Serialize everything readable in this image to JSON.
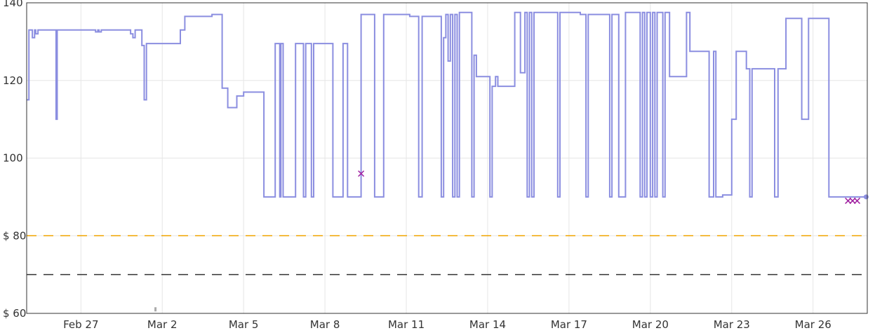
{
  "chart_data": {
    "type": "line",
    "title": "",
    "xlabel": "",
    "ylabel": "",
    "ylim": [
      60,
      140
    ],
    "xlim": [
      "2025-02-25",
      "2025-03-28"
    ],
    "grid": true,
    "y_ticks": [
      60,
      80,
      100,
      120,
      140
    ],
    "y_tick_labels": [
      "$ 60",
      "$ 80",
      "100",
      "120",
      "140"
    ],
    "x_ticks": [
      "2025-02-27",
      "2025-03-02",
      "2025-03-05",
      "2025-03-08",
      "2025-03-11",
      "2025-03-14",
      "2025-03-17",
      "2025-03-20",
      "2025-03-23",
      "2025-03-26"
    ],
    "x_tick_labels": [
      "Feb 27",
      "Mar 2",
      "Mar 5",
      "Mar 8",
      "Mar 11",
      "Mar 14",
      "Mar 17",
      "Mar 20",
      "Mar 23",
      "Mar 26"
    ],
    "reference_lines": [
      {
        "value": 80,
        "color": "#f0a500",
        "style": "dashed"
      },
      {
        "value": 70,
        "color": "#333333",
        "style": "dashed"
      }
    ],
    "series": [
      {
        "color": "#8b8ee0",
        "step": true,
        "points": [
          [
            "2025-02-25 00:00",
            115
          ],
          [
            "2025-02-25 02:00",
            133
          ],
          [
            "2025-02-25 05:00",
            131
          ],
          [
            "2025-02-25 07:00",
            133
          ],
          [
            "2025-02-25 08:00",
            132
          ],
          [
            "2025-02-25 10:00",
            133
          ],
          [
            "2025-02-26 02:00",
            110
          ],
          [
            "2025-02-26 03:00",
            133
          ],
          [
            "2025-02-27 13:00",
            132.5
          ],
          [
            "2025-02-27 15:00",
            133
          ],
          [
            "2025-02-27 16:00",
            132.5
          ],
          [
            "2025-02-27 18:00",
            133
          ],
          [
            "2025-02-28 20:00",
            132
          ],
          [
            "2025-02-28 22:00",
            131
          ],
          [
            "2025-03-01 00:00",
            133
          ],
          [
            "2025-03-01 06:00",
            129
          ],
          [
            "2025-03-01 08:00",
            115
          ],
          [
            "2025-03-01 10:00",
            129.5
          ],
          [
            "2025-03-02 16:00",
            133
          ],
          [
            "2025-03-02 20:00",
            136.5
          ],
          [
            "2025-03-03 20:00",
            137
          ],
          [
            "2025-03-04 05:00",
            118
          ],
          [
            "2025-03-04 10:00",
            113
          ],
          [
            "2025-03-04 18:00",
            116
          ],
          [
            "2025-03-05 00:00",
            117
          ],
          [
            "2025-03-05 18:00",
            90
          ],
          [
            "2025-03-06 04:00",
            129.5
          ],
          [
            "2025-03-06 08:00",
            90
          ],
          [
            "2025-03-06 09:00",
            129.5
          ],
          [
            "2025-03-06 11:00",
            90
          ],
          [
            "2025-03-06 22:00",
            129.5
          ],
          [
            "2025-03-07 05:00",
            90
          ],
          [
            "2025-03-07 07:00",
            129.5
          ],
          [
            "2025-03-07 12:00",
            90
          ],
          [
            "2025-03-07 14:00",
            129.5
          ],
          [
            "2025-03-08 07:00",
            90
          ],
          [
            "2025-03-08 16:00",
            129.5
          ],
          [
            "2025-03-08 20:00",
            90
          ],
          [
            "2025-03-09 08:00",
            137
          ],
          [
            "2025-03-09 20:00",
            90
          ],
          [
            "2025-03-10 04:00",
            137
          ],
          [
            "2025-03-11 03:00",
            136.5
          ],
          [
            "2025-03-11 11:00",
            90
          ],
          [
            "2025-03-11 14:00",
            136.5
          ],
          [
            "2025-03-12 07:00",
            90
          ],
          [
            "2025-03-12 09:00",
            131
          ],
          [
            "2025-03-12 11:00",
            137
          ],
          [
            "2025-03-12 13:00",
            125
          ],
          [
            "2025-03-12 15:00",
            137
          ],
          [
            "2025-03-12 17:00",
            90
          ],
          [
            "2025-03-12 19:00",
            137
          ],
          [
            "2025-03-12 21:00",
            90
          ],
          [
            "2025-03-12 23:00",
            137.5
          ],
          [
            "2025-03-13 10:00",
            90
          ],
          [
            "2025-03-13 12:00",
            126.5
          ],
          [
            "2025-03-13 14:00",
            121
          ],
          [
            "2025-03-14 02:00",
            90
          ],
          [
            "2025-03-14 04:00",
            118.5
          ],
          [
            "2025-03-14 07:00",
            121
          ],
          [
            "2025-03-14 09:00",
            118.5
          ],
          [
            "2025-03-15 00:00",
            137.5
          ],
          [
            "2025-03-15 05:00",
            122
          ],
          [
            "2025-03-15 09:00",
            137.5
          ],
          [
            "2025-03-15 11:00",
            90
          ],
          [
            "2025-03-15 13:00",
            137.5
          ],
          [
            "2025-03-15 15:00",
            90
          ],
          [
            "2025-03-15 17:00",
            137.5
          ],
          [
            "2025-03-16 14:00",
            90
          ],
          [
            "2025-03-16 16:00",
            137.5
          ],
          [
            "2025-03-17 10:00",
            137
          ],
          [
            "2025-03-17 15:00",
            90
          ],
          [
            "2025-03-17 17:00",
            137
          ],
          [
            "2025-03-18 12:00",
            90
          ],
          [
            "2025-03-18 14:00",
            137
          ],
          [
            "2025-03-18 20:00",
            90
          ],
          [
            "2025-03-19 02:00",
            137.5
          ],
          [
            "2025-03-19 15:00",
            90
          ],
          [
            "2025-03-19 17:00",
            137.5
          ],
          [
            "2025-03-19 19:00",
            90
          ],
          [
            "2025-03-19 21:00",
            137.5
          ],
          [
            "2025-03-20 00:00",
            90
          ],
          [
            "2025-03-20 02:00",
            137.5
          ],
          [
            "2025-03-20 04:00",
            90
          ],
          [
            "2025-03-20 06:00",
            137.5
          ],
          [
            "2025-03-20 11:00",
            90
          ],
          [
            "2025-03-20 13:00",
            137.5
          ],
          [
            "2025-03-20 17:00",
            121
          ],
          [
            "2025-03-21 08:00",
            137.5
          ],
          [
            "2025-03-21 11:00",
            127.5
          ],
          [
            "2025-03-22 04:00",
            90
          ],
          [
            "2025-03-22 08:00",
            127.5
          ],
          [
            "2025-03-22 10:00",
            90
          ],
          [
            "2025-03-22 16:00",
            90.5
          ],
          [
            "2025-03-23 00:00",
            110
          ],
          [
            "2025-03-23 04:00",
            127.5
          ],
          [
            "2025-03-23 13:00",
            123
          ],
          [
            "2025-03-23 16:00",
            90
          ],
          [
            "2025-03-23 18:00",
            123
          ],
          [
            "2025-03-24 14:00",
            90
          ],
          [
            "2025-03-24 17:00",
            123
          ],
          [
            "2025-03-25 00:00",
            136
          ],
          [
            "2025-03-25 14:00",
            110
          ],
          [
            "2025-03-25 20:00",
            136
          ],
          [
            "2025-03-26 14:00",
            90
          ],
          [
            "2025-03-27 23:00",
            90
          ]
        ]
      }
    ],
    "markers": [
      {
        "type": "x",
        "color": "#a020a0",
        "points": [
          [
            "2025-03-09 08:00",
            96
          ],
          [
            "2025-03-27 07:00",
            89
          ],
          [
            "2025-03-27 11:00",
            89
          ],
          [
            "2025-03-27 15:00",
            89
          ]
        ]
      },
      {
        "type": "dot",
        "color": "#8b8ee0",
        "points": [
          [
            "2025-03-27 23:00",
            90
          ]
        ]
      },
      {
        "type": "tick",
        "color": "#aaaaaa",
        "points": [
          [
            "2025-03-01 18:00",
            60.5
          ]
        ]
      }
    ]
  }
}
